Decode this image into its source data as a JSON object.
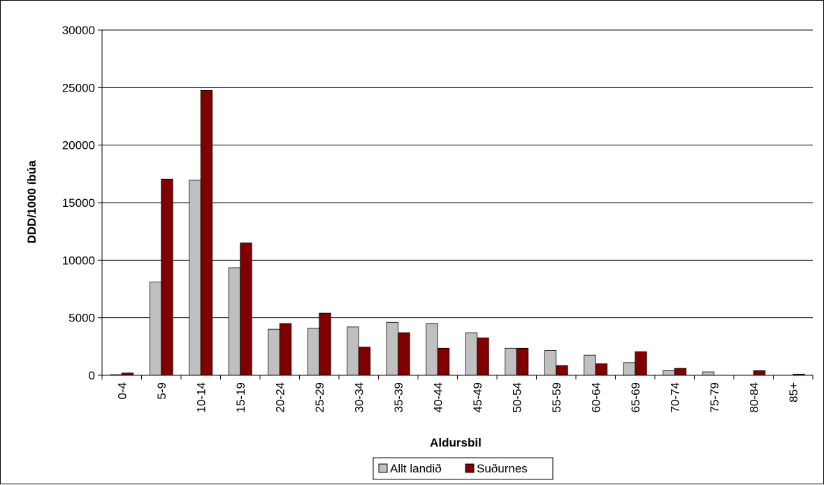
{
  "chart_data": {
    "type": "bar",
    "title": "",
    "xlabel": "Aldursbil",
    "ylabel": "DDD/1000 íbúa",
    "ylim": [
      0,
      30000
    ],
    "yticks": [
      0,
      5000,
      10000,
      15000,
      20000,
      25000,
      30000
    ],
    "grid": true,
    "legend_position": "bottom",
    "categories": [
      "0-4",
      "5-9",
      "10-14",
      "15-19",
      "20-24",
      "25-29",
      "30-34",
      "35-39",
      "40-44",
      "45-49",
      "50-54",
      "55-59",
      "60-64",
      "65-69",
      "70-74",
      "75-79",
      "80-84",
      "85+"
    ],
    "series": [
      {
        "name": "Allt landið",
        "color": "#c0c0c0",
        "values": [
          50,
          8100,
          16950,
          9350,
          4000,
          4100,
          4200,
          4600,
          4500,
          3700,
          2350,
          2150,
          1750,
          1100,
          400,
          300,
          0,
          0
        ]
      },
      {
        "name": "Suðurnes",
        "color": "#800000",
        "values": [
          200,
          17050,
          24750,
          11500,
          4500,
          5400,
          2450,
          3700,
          2350,
          3250,
          2350,
          850,
          1000,
          2050,
          600,
          0,
          400,
          100
        ]
      }
    ]
  }
}
